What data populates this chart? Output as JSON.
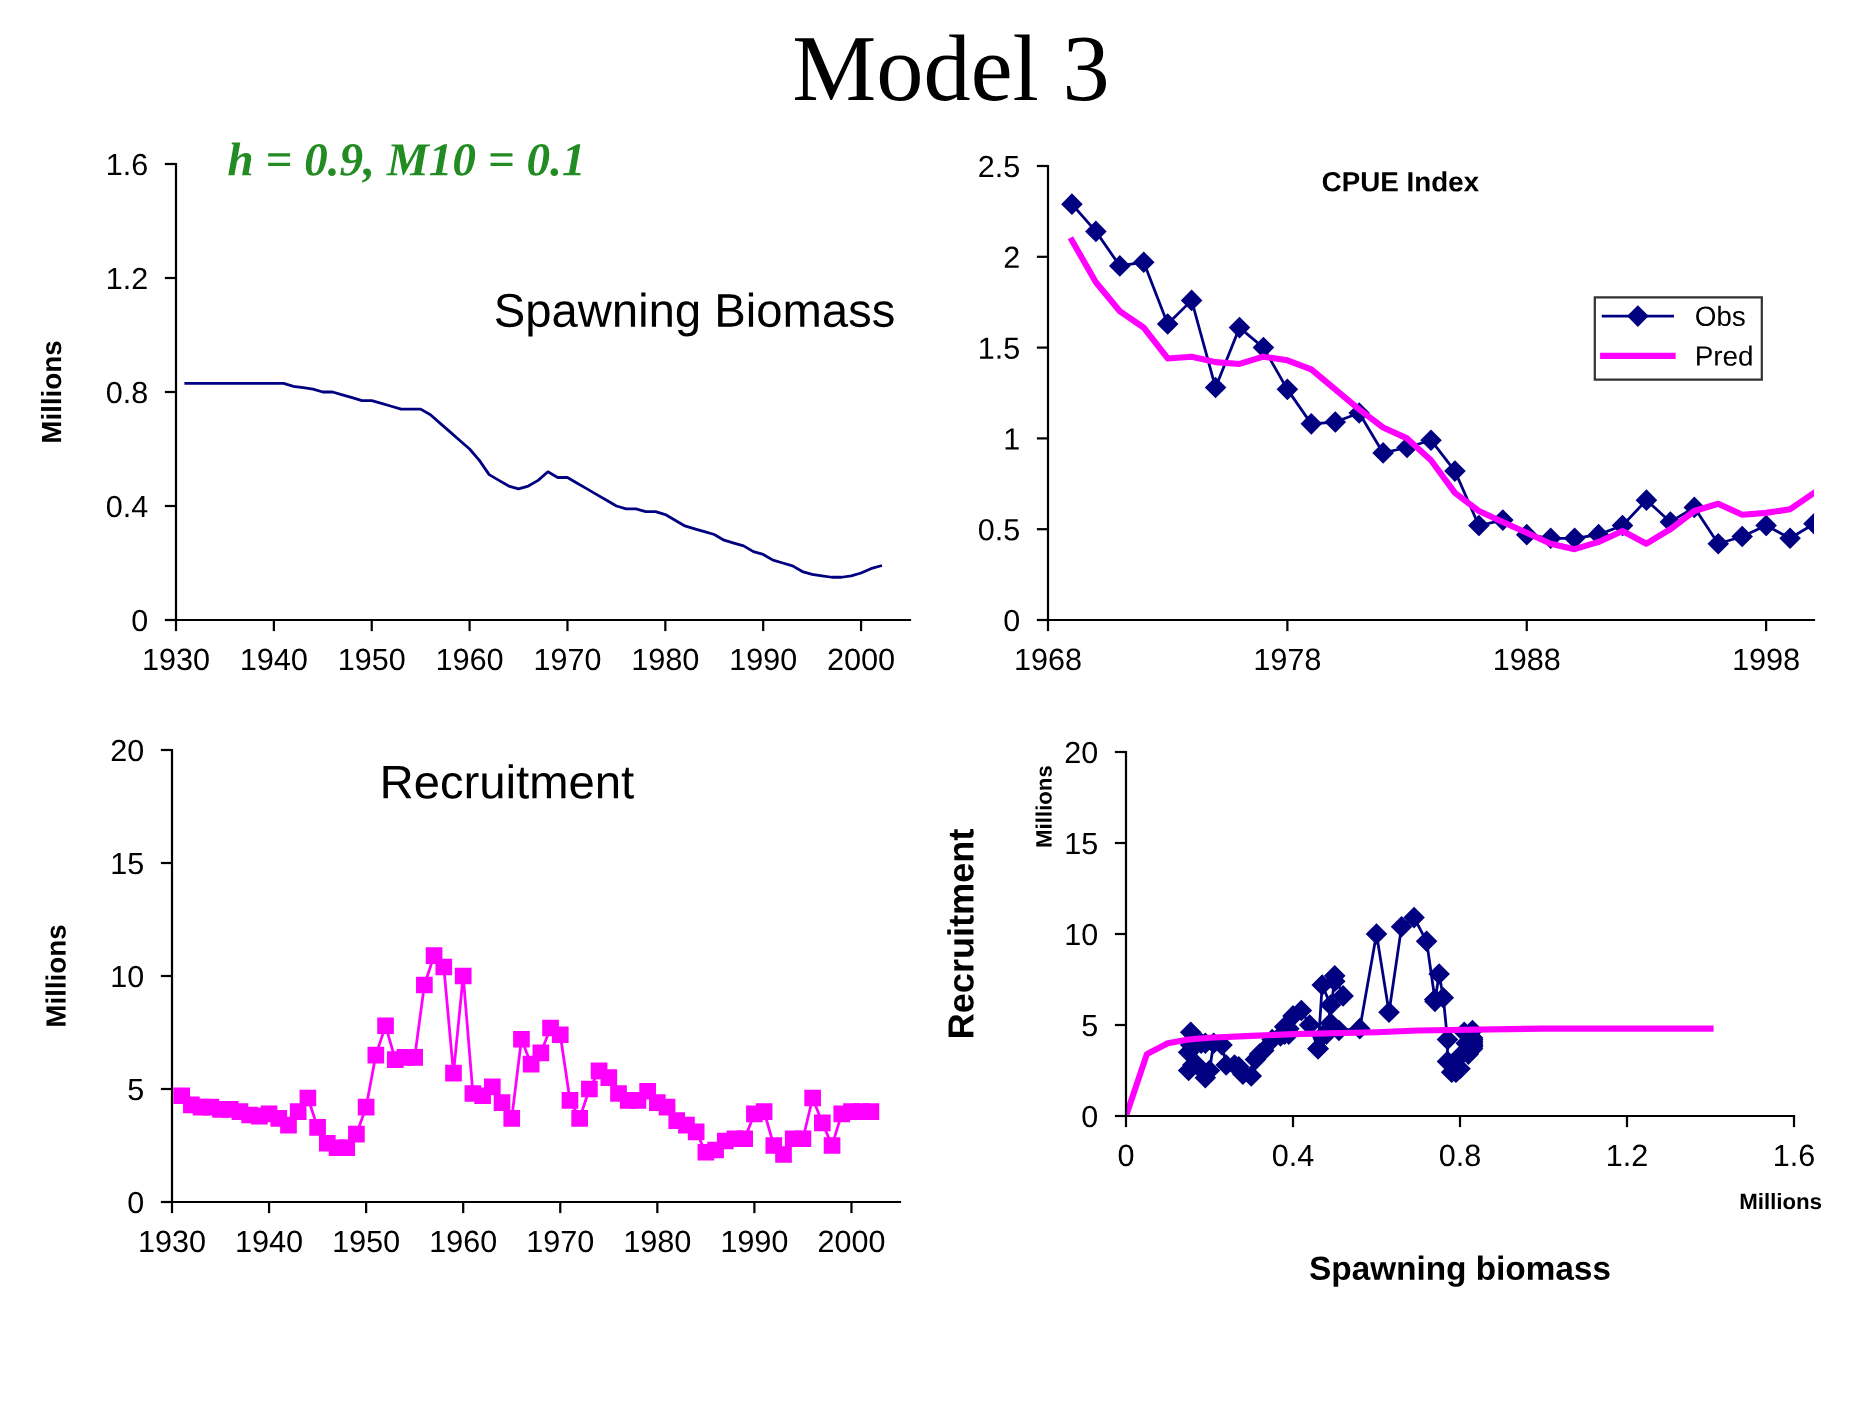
{
  "chart_data": [
    {
      "type": "line",
      "title": "Model 3",
      "subtitle": "h = 0.9, M10 = 0.1",
      "ylabel": "Millions",
      "annotations": [
        "Spawning Biomass"
      ],
      "x": [
        1931,
        1941,
        1942,
        1943,
        1944,
        1945,
        1946,
        1947,
        1948,
        1949,
        1950,
        1951,
        1952,
        1953,
        1954,
        1955,
        1956,
        1957,
        1958,
        1959,
        1960,
        1961,
        1962,
        1963,
        1964,
        1965,
        1966,
        1967,
        1968,
        1969,
        1970,
        1971,
        1972,
        1973,
        1974,
        1975,
        1976,
        1977,
        1978,
        1979,
        1980,
        1981,
        1982,
        1983,
        1984,
        1985,
        1986,
        1987,
        1988,
        1989,
        1990,
        1991,
        1992,
        1993,
        1994,
        1995,
        1996,
        1997,
        1998,
        1999,
        2000,
        2001,
        2002
      ],
      "series": [
        {
          "color": "#000080",
          "values": [
            0.83,
            0.83,
            0.82,
            0.815,
            0.81,
            0.8,
            0.8,
            0.79,
            0.78,
            0.77,
            0.77,
            0.76,
            0.75,
            0.74,
            0.74,
            0.74,
            0.72,
            0.69,
            0.66,
            0.63,
            0.6,
            0.56,
            0.51,
            0.49,
            0.47,
            0.46,
            0.47,
            0.49,
            0.52,
            0.5,
            0.5,
            0.48,
            0.46,
            0.44,
            0.42,
            0.4,
            0.39,
            0.39,
            0.38,
            0.38,
            0.37,
            0.35,
            0.33,
            0.32,
            0.31,
            0.3,
            0.28,
            0.27,
            0.26,
            0.24,
            0.23,
            0.21,
            0.2,
            0.19,
            0.17,
            0.16,
            0.155,
            0.15,
            0.15,
            0.155,
            0.165,
            0.18,
            0.19
          ]
        }
      ],
      "xlim": [
        1930,
        2005
      ],
      "xticks": [
        1930,
        1940,
        1950,
        1960,
        1970,
        1980,
        1990,
        2000
      ],
      "ylim": [
        0,
        1.6
      ],
      "yticks": [
        0,
        0.4,
        0.8,
        1.2,
        1.6
      ],
      "grid": false,
      "legend": false,
      "marker": "none"
    },
    {
      "type": "line",
      "title": "CPUE Index",
      "x": [
        1969,
        1970,
        1971,
        1972,
        1973,
        1974,
        1975,
        1976,
        1977,
        1978,
        1979,
        1980,
        1981,
        1982,
        1983,
        1984,
        1985,
        1986,
        1987,
        1988,
        1989,
        1990,
        1991,
        1992,
        1993,
        1994,
        1995,
        1996,
        1997,
        1998,
        1999,
        2000
      ],
      "series": [
        {
          "name": "Obs",
          "color": "#000080",
          "marker": "diamond",
          "values": [
            2.29,
            2.14,
            1.95,
            1.97,
            1.63,
            1.76,
            1.28,
            1.61,
            1.5,
            1.27,
            1.08,
            1.09,
            1.14,
            0.92,
            0.95,
            0.99,
            0.82,
            0.52,
            0.55,
            0.47,
            0.45,
            0.45,
            0.47,
            0.52,
            0.66,
            0.54,
            0.62,
            0.42,
            0.46,
            0.52,
            0.45,
            0.53
          ]
        },
        {
          "name": "Pred",
          "color": "#ff00ff",
          "marker": "none",
          "values": [
            2.09,
            1.86,
            1.7,
            1.61,
            1.44,
            1.45,
            1.42,
            1.41,
            1.45,
            1.43,
            1.38,
            1.27,
            1.16,
            1.06,
            1.0,
            0.88,
            0.7,
            0.6,
            0.54,
            0.48,
            0.42,
            0.39,
            0.43,
            0.49,
            0.42,
            0.5,
            0.6,
            0.64,
            0.58,
            0.59,
            0.61,
            0.7
          ]
        }
      ],
      "xlim": [
        1968,
        2000
      ],
      "xticks": [
        1968,
        1978,
        1988,
        1998
      ],
      "ylim": [
        0,
        2.5
      ],
      "yticks": [
        0,
        0.5,
        1,
        1.5,
        2,
        2.5
      ],
      "grid": false,
      "legend": "right"
    },
    {
      "type": "line",
      "title": "Recruitment",
      "ylabel": "Millions",
      "x": [
        1931,
        1932,
        1933,
        1934,
        1935,
        1936,
        1937,
        1938,
        1939,
        1940,
        1941,
        1942,
        1943,
        1944,
        1945,
        1946,
        1947,
        1948,
        1949,
        1950,
        1951,
        1952,
        1953,
        1954,
        1955,
        1956,
        1957,
        1958,
        1959,
        1960,
        1961,
        1962,
        1963,
        1964,
        1965,
        1966,
        1967,
        1968,
        1969,
        1970,
        1971,
        1972,
        1973,
        1974,
        1975,
        1976,
        1977,
        1978,
        1979,
        1980,
        1981,
        1982,
        1983,
        1984,
        1985,
        1986,
        1987,
        1988,
        1989,
        1990,
        1991,
        1992,
        1993,
        1994,
        1995,
        1996,
        1997,
        1998,
        1999,
        2000,
        2001,
        2002
      ],
      "series": [
        {
          "color": "#ff00ff",
          "values": [
            4.7,
            4.3,
            4.2,
            4.2,
            4.1,
            4.1,
            4.0,
            3.85,
            3.8,
            3.9,
            3.7,
            3.4,
            4.0,
            4.6,
            3.3,
            2.6,
            2.4,
            2.4,
            3.0,
            4.2,
            6.5,
            7.8,
            6.3,
            6.4,
            6.4,
            9.6,
            10.9,
            10.4,
            5.7,
            10.0,
            4.8,
            4.7,
            5.1,
            4.4,
            3.7,
            7.2,
            6.1,
            6.6,
            7.7,
            7.4,
            4.5,
            3.7,
            5.0,
            5.8,
            5.5,
            4.8,
            4.5,
            4.5,
            4.9,
            4.4,
            4.2,
            3.6,
            3.4,
            3.1,
            2.2,
            2.3,
            2.7,
            2.8,
            2.8,
            3.9,
            4.0,
            2.5,
            2.1,
            2.8,
            2.8,
            4.6,
            3.5,
            2.5,
            3.9,
            4.0,
            4.0,
            4.0
          ]
        }
      ],
      "xlim": [
        1930,
        2005
      ],
      "xticks": [
        1930,
        1940,
        1950,
        1960,
        1970,
        1980,
        1990,
        2000
      ],
      "ylim": [
        0,
        20
      ],
      "yticks": [
        0,
        5,
        10,
        15,
        20
      ],
      "grid": false,
      "legend": false,
      "marker": "square"
    },
    {
      "type": "line",
      "xlabel": "Spawning biomass",
      "ylabel": "Recruitment",
      "annotations": [
        "Millions",
        "Millions"
      ],
      "series": [
        {
          "color": "#000080",
          "marker": "diamond",
          "x": [
            0.83,
            0.83,
            0.83,
            0.83,
            0.83,
            0.83,
            0.83,
            0.83,
            0.83,
            0.83,
            0.83,
            0.82,
            0.815,
            0.81,
            0.8,
            0.8,
            0.79,
            0.78,
            0.77,
            0.77,
            0.76,
            0.75,
            0.74,
            0.74,
            0.74,
            0.72,
            0.69,
            0.66,
            0.63,
            0.6,
            0.56,
            0.51,
            0.49,
            0.47,
            0.46,
            0.47,
            0.49,
            0.52,
            0.5,
            0.5,
            0.48,
            0.46,
            0.44,
            0.42,
            0.4,
            0.39,
            0.39,
            0.38,
            0.38,
            0.37,
            0.35,
            0.33,
            0.32,
            0.31,
            0.3,
            0.28,
            0.27,
            0.26,
            0.24,
            0.23,
            0.21,
            0.2,
            0.19,
            0.17,
            0.16,
            0.155,
            0.15,
            0.15,
            0.155,
            0.165,
            0.18,
            0.19
          ],
          "values": [
            4.7,
            4.3,
            4.2,
            4.2,
            4.1,
            4.1,
            4.0,
            3.85,
            3.8,
            3.9,
            3.7,
            3.4,
            4.0,
            4.6,
            3.3,
            2.6,
            2.4,
            2.4,
            3.0,
            4.2,
            6.5,
            7.8,
            6.3,
            6.4,
            6.4,
            9.6,
            10.9,
            10.4,
            5.7,
            10.0,
            4.8,
            4.7,
            5.1,
            4.4,
            3.7,
            7.2,
            6.1,
            6.6,
            7.7,
            7.4,
            4.5,
            3.7,
            5.0,
            5.8,
            5.5,
            4.8,
            4.5,
            4.5,
            4.9,
            4.4,
            4.2,
            3.6,
            3.4,
            3.1,
            2.2,
            2.3,
            2.7,
            2.8,
            2.8,
            3.9,
            4.0,
            2.5,
            2.1,
            2.8,
            2.8,
            4.6,
            3.5,
            2.5,
            3.9,
            4.0,
            4.0,
            4.0
          ]
        },
        {
          "color": "#ff00ff",
          "marker": "none",
          "x": [
            0,
            0.05,
            0.1,
            0.15,
            0.2,
            0.3,
            0.4,
            0.6,
            0.7,
            1.0,
            1.4
          ],
          "values": [
            0,
            3.4,
            4.0,
            4.2,
            4.3,
            4.4,
            4.5,
            4.6,
            4.7,
            4.8,
            4.8
          ]
        }
      ],
      "xlim": [
        0,
        1.6
      ],
      "xticks": [
        0,
        0.4,
        0.8,
        1.2,
        1.6
      ],
      "ylim": [
        0,
        20
      ],
      "yticks": [
        0,
        5,
        10,
        15,
        20
      ],
      "grid": false,
      "legend": false
    }
  ]
}
